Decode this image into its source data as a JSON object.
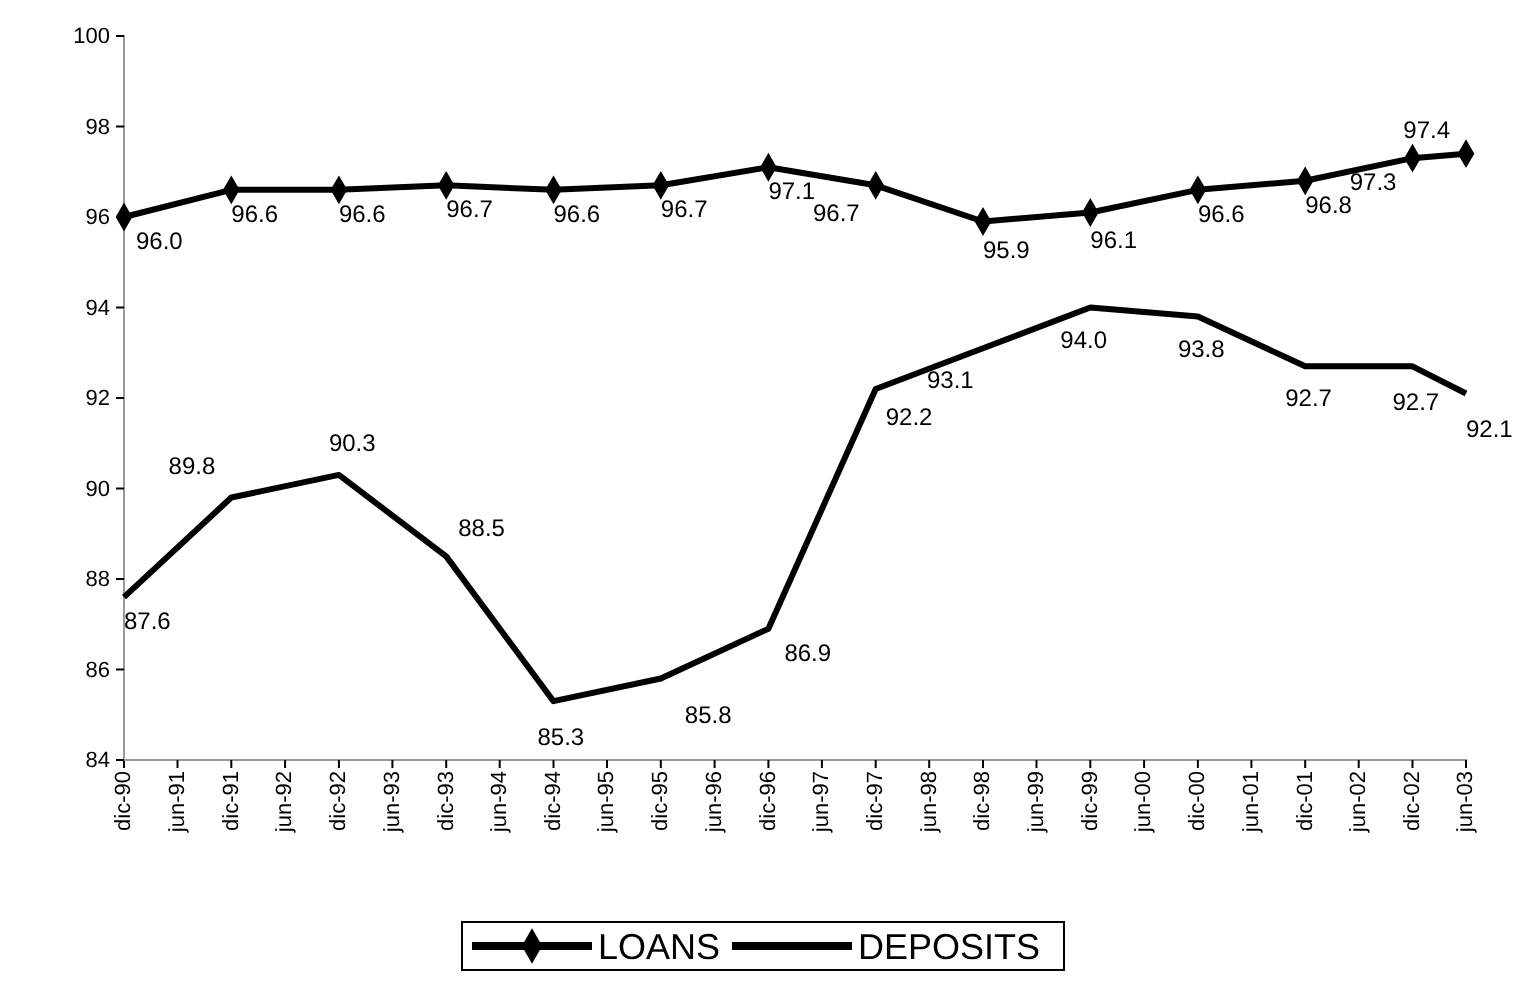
{
  "chart_data": {
    "type": "line",
    "x": [
      "1990-12",
      "1991-12",
      "1992-12",
      "1993-12",
      "1994-12",
      "1995-12",
      "1996-12",
      "1997-12",
      "1998-12",
      "1999-12",
      "2000-12",
      "2001-12",
      "2002-12",
      "2003-06"
    ],
    "xlim": [
      "1990-12",
      "2003-06"
    ],
    "xticks": [
      {
        "value": "1990-12",
        "label": "dic-90"
      },
      {
        "value": "1991-06",
        "label": "jun-91"
      },
      {
        "value": "1991-12",
        "label": "dic-91"
      },
      {
        "value": "1992-06",
        "label": "jun-92"
      },
      {
        "value": "1992-12",
        "label": "dic-92"
      },
      {
        "value": "1993-06",
        "label": "jun-93"
      },
      {
        "value": "1993-12",
        "label": "dic-93"
      },
      {
        "value": "1994-06",
        "label": "jun-94"
      },
      {
        "value": "1994-12",
        "label": "dic-94"
      },
      {
        "value": "1995-06",
        "label": "jun-95"
      },
      {
        "value": "1995-12",
        "label": "dic-95"
      },
      {
        "value": "1996-06",
        "label": "jun-96"
      },
      {
        "value": "1996-12",
        "label": "dic-96"
      },
      {
        "value": "1997-06",
        "label": "jun-97"
      },
      {
        "value": "1997-12",
        "label": "dic-97"
      },
      {
        "value": "1998-06",
        "label": "jun-98"
      },
      {
        "value": "1998-12",
        "label": "dic-98"
      },
      {
        "value": "1999-06",
        "label": "jun-99"
      },
      {
        "value": "1999-12",
        "label": "dic-99"
      },
      {
        "value": "2000-06",
        "label": "jun-00"
      },
      {
        "value": "2000-12",
        "label": "dic-00"
      },
      {
        "value": "2001-06",
        "label": "jun-01"
      },
      {
        "value": "2001-12",
        "label": "dic-01"
      },
      {
        "value": "2002-06",
        "label": "jun-02"
      },
      {
        "value": "2002-12",
        "label": "dic-02"
      },
      {
        "value": "2003-06",
        "label": "jun-03"
      }
    ],
    "ylim": [
      84,
      100
    ],
    "yticks": [
      84,
      86,
      88,
      90,
      92,
      94,
      96,
      98,
      100
    ],
    "series": [
      {
        "name": "LOANS",
        "color": "#000000",
        "marker": "diamond",
        "values": [
          96.0,
          96.6,
          96.6,
          96.7,
          96.6,
          96.7,
          97.1,
          96.7,
          95.9,
          96.1,
          96.6,
          96.8,
          97.3,
          97.4
        ],
        "value_labels": [
          "96.0",
          "96.6",
          "96.6",
          "96.7",
          "96.6",
          "96.7",
          "97.1",
          "96.7",
          "95.9",
          "96.1",
          "96.6",
          "96.8",
          "97.3",
          "97.4"
        ]
      },
      {
        "name": "DEPOSITS",
        "color": "#000000",
        "marker": "none",
        "values": [
          87.6,
          89.8,
          90.3,
          88.5,
          85.3,
          85.8,
          86.9,
          92.2,
          93.1,
          94.0,
          93.8,
          92.7,
          92.7,
          92.1
        ],
        "value_labels": [
          "87.6",
          "89.8",
          "90.3",
          "88.5",
          "85.3",
          "85.8",
          "86.9",
          "92.2",
          "93.1",
          "94.0",
          "93.8",
          "92.7",
          "92.7",
          "92.1"
        ]
      }
    ],
    "grid": false,
    "legend": "bottom",
    "line_style": "solid"
  }
}
